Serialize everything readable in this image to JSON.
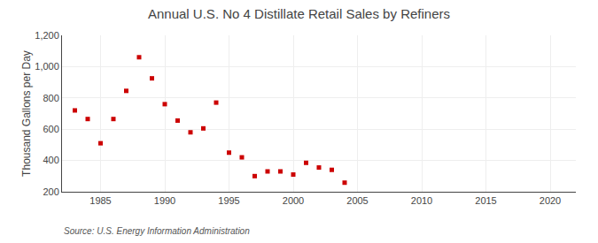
{
  "chart_data": {
    "type": "scatter",
    "title": "Annual U.S. No 4 Distillate Retail Sales by Refiners",
    "y_label": "Thousand Gallons per Day",
    "annotations": [
      "Source: U.S. Energy Information Administration"
    ],
    "x": [
      1983,
      1984,
      1985,
      1986,
      1987,
      1988,
      1989,
      1990,
      1991,
      1992,
      1993,
      1994,
      1995,
      1996,
      1997,
      1998,
      1999,
      2000,
      2001,
      2002,
      2003,
      2004
    ],
    "values": [
      720,
      665,
      510,
      665,
      845,
      1060,
      925,
      760,
      655,
      580,
      605,
      770,
      450,
      420,
      300,
      330,
      330,
      310,
      385,
      355,
      340,
      258
    ],
    "color": "#cc0000",
    "marker": "square",
    "xlim": [
      1982,
      2022
    ],
    "xticks": [
      1985,
      1990,
      1995,
      2000,
      2005,
      2010,
      2015,
      2020
    ],
    "ylim": [
      200,
      1200
    ],
    "yticks": [
      200,
      400,
      600,
      800,
      {
        "value": 1000,
        "label": "1,000"
      },
      {
        "value": 1200,
        "label": "1,200"
      }
    ],
    "grid": true
  }
}
